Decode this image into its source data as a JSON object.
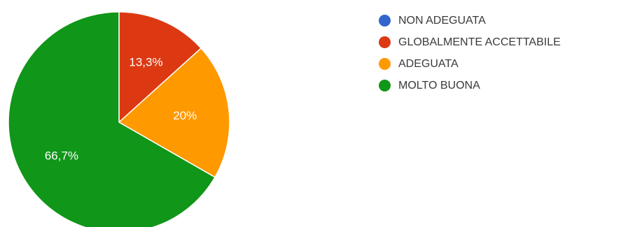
{
  "chart_data": {
    "type": "pie",
    "categories": [
      "NON ADEGUATA",
      "GLOBALMENTE ACCETTABILE",
      "ADEGUATA",
      "MOLTO BUONA"
    ],
    "values": [
      0,
      13.3,
      20,
      66.7
    ],
    "value_labels": [
      "",
      "13,3%",
      "20%",
      "66,7%"
    ],
    "colors": [
      "#3366cc",
      "#dc3912",
      "#ff9900",
      "#109618"
    ],
    "start_angle_deg": 90,
    "direction": "clockwise",
    "legend_position": "right",
    "title": ""
  }
}
